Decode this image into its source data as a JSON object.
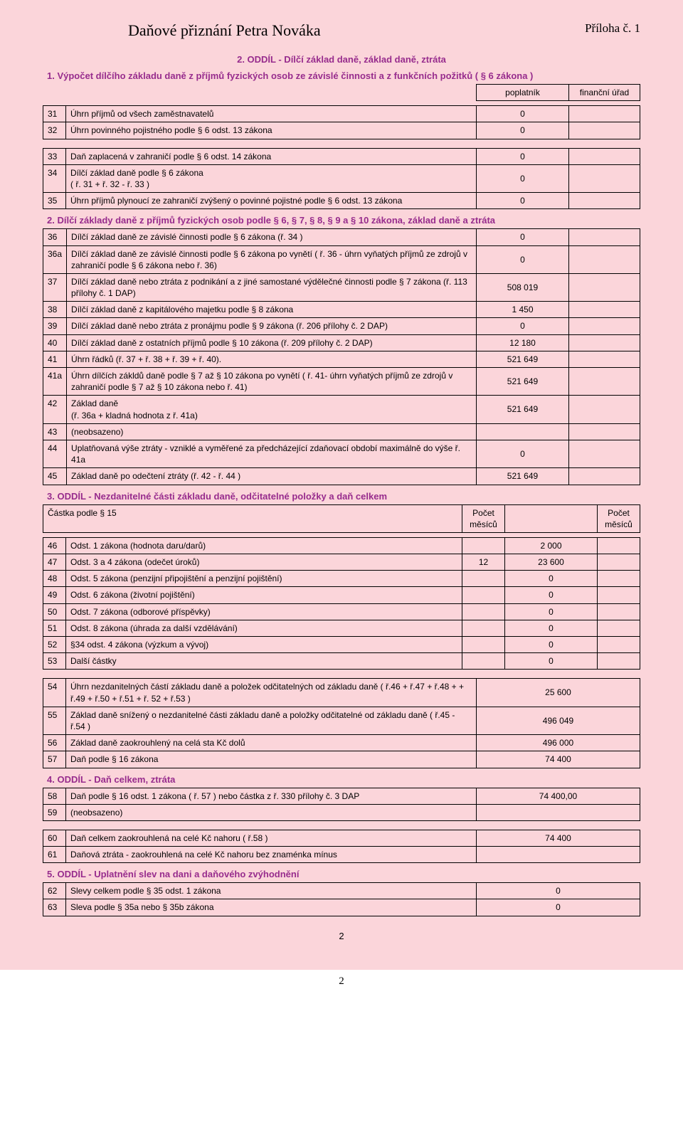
{
  "header": {
    "title": "Daňové přiznání Petra Nováka",
    "annex": "Příloha č. 1"
  },
  "section2": {
    "title": "2. ODDÍL - Dílčí základ daně, základ daně, ztráta",
    "sub1": {
      "title": "1. Výpočet dílčího základu daně z příjmů fyzických osob ze závislé činnosti a z funkčních požitků ( § 6 zákona )",
      "col_taxpayer": "poplatník",
      "col_office": "finanční úřad",
      "rows": [
        {
          "num": "31",
          "desc": "Úhrn příjmů od všech zaměstnavatelů",
          "val": "0",
          "val2": ""
        },
        {
          "num": "32",
          "desc": "Úhrn povinného pojistného podle § 6 odst. 13 zákona",
          "val": "0",
          "val2": ""
        }
      ],
      "rows_b": [
        {
          "num": "33",
          "desc": "Daň zaplacená v zahraničí podle § 6 odst. 14 zákona",
          "val": "0",
          "val2": ""
        },
        {
          "num": "34",
          "desc": "Dílčí základ daně podle § 6 zákona\n( ř. 31 + ř. 32 - ř. 33 )",
          "val": "0",
          "val2": ""
        },
        {
          "num": "35",
          "desc": "Úhrn příjmů plynoucí ze zahraničí zvýšený o povinné pojistné podle § 6 odst. 13 zákona",
          "val": "0",
          "val2": ""
        }
      ]
    },
    "sub2": {
      "title": "2. Dílčí základy daně z příjmů fyzických osob podle § 6, § 7, § 8, § 9 a § 10 zákona, základ daně a ztráta",
      "rows": [
        {
          "num": "36",
          "desc": "Dílčí základ daně ze závislé činnosti podle § 6 zákona (ř. 34 )",
          "val": "0",
          "val2": ""
        },
        {
          "num": "36a",
          "desc": "Dílčí základ daně ze závislé činnosti podle § 6 zákona po vynětí ( ř. 36 - úhrn vyňatých příjmů ze zdrojů v zahraničí podle § 6 zákona nebo ř. 36)",
          "val": "0",
          "val2": ""
        },
        {
          "num": "37",
          "desc": "Dílčí základ daně nebo ztráta z podnikání a z jiné samostané výdělečné činnosti podle § 7 zákona (ř. 113 přílohy č. 1 DAP)",
          "val": "508 019",
          "val2": ""
        },
        {
          "num": "38",
          "desc": "Dílčí základ daně z kapitálového majetku podle § 8 zákona",
          "val": "1 450",
          "val2": ""
        },
        {
          "num": "39",
          "desc": "Dílčí základ daně nebo ztráta z pronájmu podle § 9 zákona (ř. 206 přílohy č. 2 DAP)",
          "val": "0",
          "val2": ""
        },
        {
          "num": "40",
          "desc": "Dílčí základ daně z ostatních příjmů podle § 10 zákona (ř. 209 přílohy č. 2 DAP)",
          "val": "12 180",
          "val2": ""
        },
        {
          "num": "41",
          "desc": "Úhrn řádků (ř. 37 + ř. 38 + ř. 39 + ř. 40).",
          "val": "521 649",
          "val2": ""
        },
        {
          "num": "41a",
          "desc": "Úhrn dílčích zákldů daně podle § 7 až § 10 zákona po vynětí ( ř. 41- úhrn vyňatých příjmů ze zdrojů v zahraničí podle § 7 až § 10 zákona nebo ř. 41)",
          "val": "521 649",
          "val2": ""
        },
        {
          "num": "42",
          "desc": "Základ daně\n(ř. 36a + kladná hodnota z ř. 41a)",
          "val": "521 649",
          "val2": ""
        },
        {
          "num": "43",
          "desc": "(neobsazeno)",
          "val": "",
          "val2": ""
        },
        {
          "num": "44",
          "desc": "Uplatňovaná výše ztráty - vzniklé a vyměřené za předcházející zdaňovací období maximálně do výše ř. 41a",
          "val": "0",
          "val2": ""
        },
        {
          "num": "45",
          "desc": "Základ daně po odečtení ztráty (ř. 42 - ř. 44 )",
          "val": "521 649",
          "val2": ""
        }
      ]
    }
  },
  "section3": {
    "title": "3. ODDÍL - Nezdanitelné části základu daně, odčitatelné položky a daň celkem",
    "header_label": "Částka podle § 15",
    "col_months": "Počet\nměsíců",
    "rows": [
      {
        "num": "46",
        "desc": "Odst. 1 zákona (hodnota daru/darů)",
        "m1": "",
        "val": "2 000",
        "m2": ""
      },
      {
        "num": "47",
        "desc": "Odst. 3 a 4 zákona (odečet úroků)",
        "m1": "12",
        "val": "23 600",
        "m2": ""
      },
      {
        "num": "48",
        "desc": "Odst. 5 zákona (penzijní připojištění a penzijní pojištění)",
        "m1": "",
        "val": "0",
        "m2": ""
      },
      {
        "num": "49",
        "desc": "Odst. 6 zákona (životní pojištění)",
        "m1": "",
        "val": "0",
        "m2": ""
      },
      {
        "num": "50",
        "desc": "Odst. 7 zákona (odborové příspěvky)",
        "m1": "",
        "val": "0",
        "m2": ""
      },
      {
        "num": "51",
        "desc": "Odst. 8 zákona (úhrada za další vzdělávání)",
        "m1": "",
        "val": "0",
        "m2": ""
      },
      {
        "num": "52",
        "desc": "§34 odst. 4 zákona (výzkum a vývoj)",
        "m1": "",
        "val": "0",
        "m2": ""
      },
      {
        "num": "53",
        "desc": "Další částky",
        "m1": "",
        "val": "0",
        "m2": ""
      }
    ],
    "rows_b": [
      {
        "num": "54",
        "desc": "Úhrn nezdanitelných částí základu daně a položek odčitatelných od základu daně ( ř.46 + ř.47 + ř.48 + + ř.49 + ř.50 + ř.51 + ř. 52 + ř.53 )",
        "val": "25 600"
      },
      {
        "num": "55",
        "desc": "Základ daně snížený o nezdanitelné části základu daně a položky odčitatelné od základu daně ( ř.45 - ř.54 )",
        "val": "496 049"
      },
      {
        "num": "56",
        "desc": "Základ daně zaokrouhlený na celá sta Kč dolů",
        "val": "496 000"
      },
      {
        "num": "57",
        "desc": "Daň podle § 16 zákona",
        "val": "74 400"
      }
    ]
  },
  "section4": {
    "title": "4. ODDÍL - Daň celkem, ztráta",
    "rows": [
      {
        "num": "58",
        "desc": "Daň podle § 16 odst. 1 zákona ( ř. 57 ) nebo částka z ř. 330 přílohy č. 3 DAP",
        "val": "74 400,00"
      },
      {
        "num": "59",
        "desc": "(neobsazeno)",
        "val": ""
      }
    ],
    "rows_b": [
      {
        "num": "60",
        "desc": "Daň celkem zaokrouhlená na celé Kč nahoru ( ř.58 )",
        "val": "74 400"
      },
      {
        "num": "61",
        "desc": "Daňová ztráta - zaokrouhlená na celé Kč nahoru bez znaménka mínus",
        "val": ""
      }
    ]
  },
  "section5": {
    "title": "5. ODDÍL - Uplatnění slev na dani a daňového zvýhodnění",
    "rows": [
      {
        "num": "62",
        "desc": "Slevy celkem podle § 35 odst. 1 zákona",
        "val": "0"
      },
      {
        "num": "63",
        "desc": "Sleva podle § 35a nebo § 35b zákona",
        "val": "0"
      }
    ]
  },
  "footer": {
    "inner_page": "2",
    "outer_page": "2"
  }
}
